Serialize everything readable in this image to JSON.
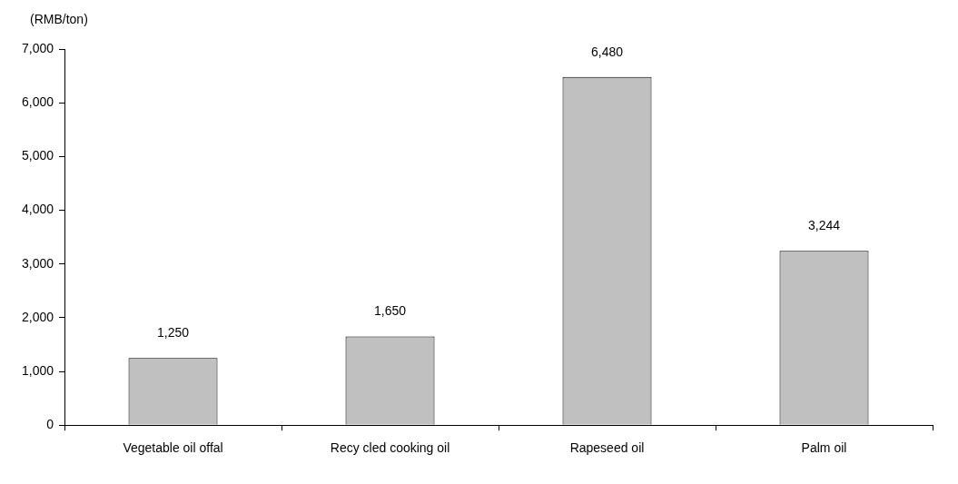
{
  "chart_data": {
    "type": "bar",
    "ylabel": "(RMB/ton)",
    "categories": [
      "Vegetable oil offal",
      "Recy cled cooking oil",
      "Rapeseed oil",
      "Palm oil"
    ],
    "values": [
      1250,
      1650,
      6480,
      3244
    ],
    "value_labels": [
      "1,250",
      "1,650",
      "6,480",
      "3,244"
    ],
    "color": "#c0c0c0",
    "ylim": [
      0,
      7000
    ],
    "yticks": [
      0,
      {
        "value": 1000,
        "label": "1,000"
      },
      {
        "value": 2000,
        "label": "2,000"
      },
      {
        "value": 3000,
        "label": "3,000"
      },
      {
        "value": 4000,
        "label": "4,000"
      },
      {
        "value": 5000,
        "label": "5,000"
      },
      {
        "value": 6000,
        "label": "6,000"
      },
      {
        "value": 7000,
        "label": "7,000"
      }
    ],
    "grid": false,
    "legend": false
  }
}
